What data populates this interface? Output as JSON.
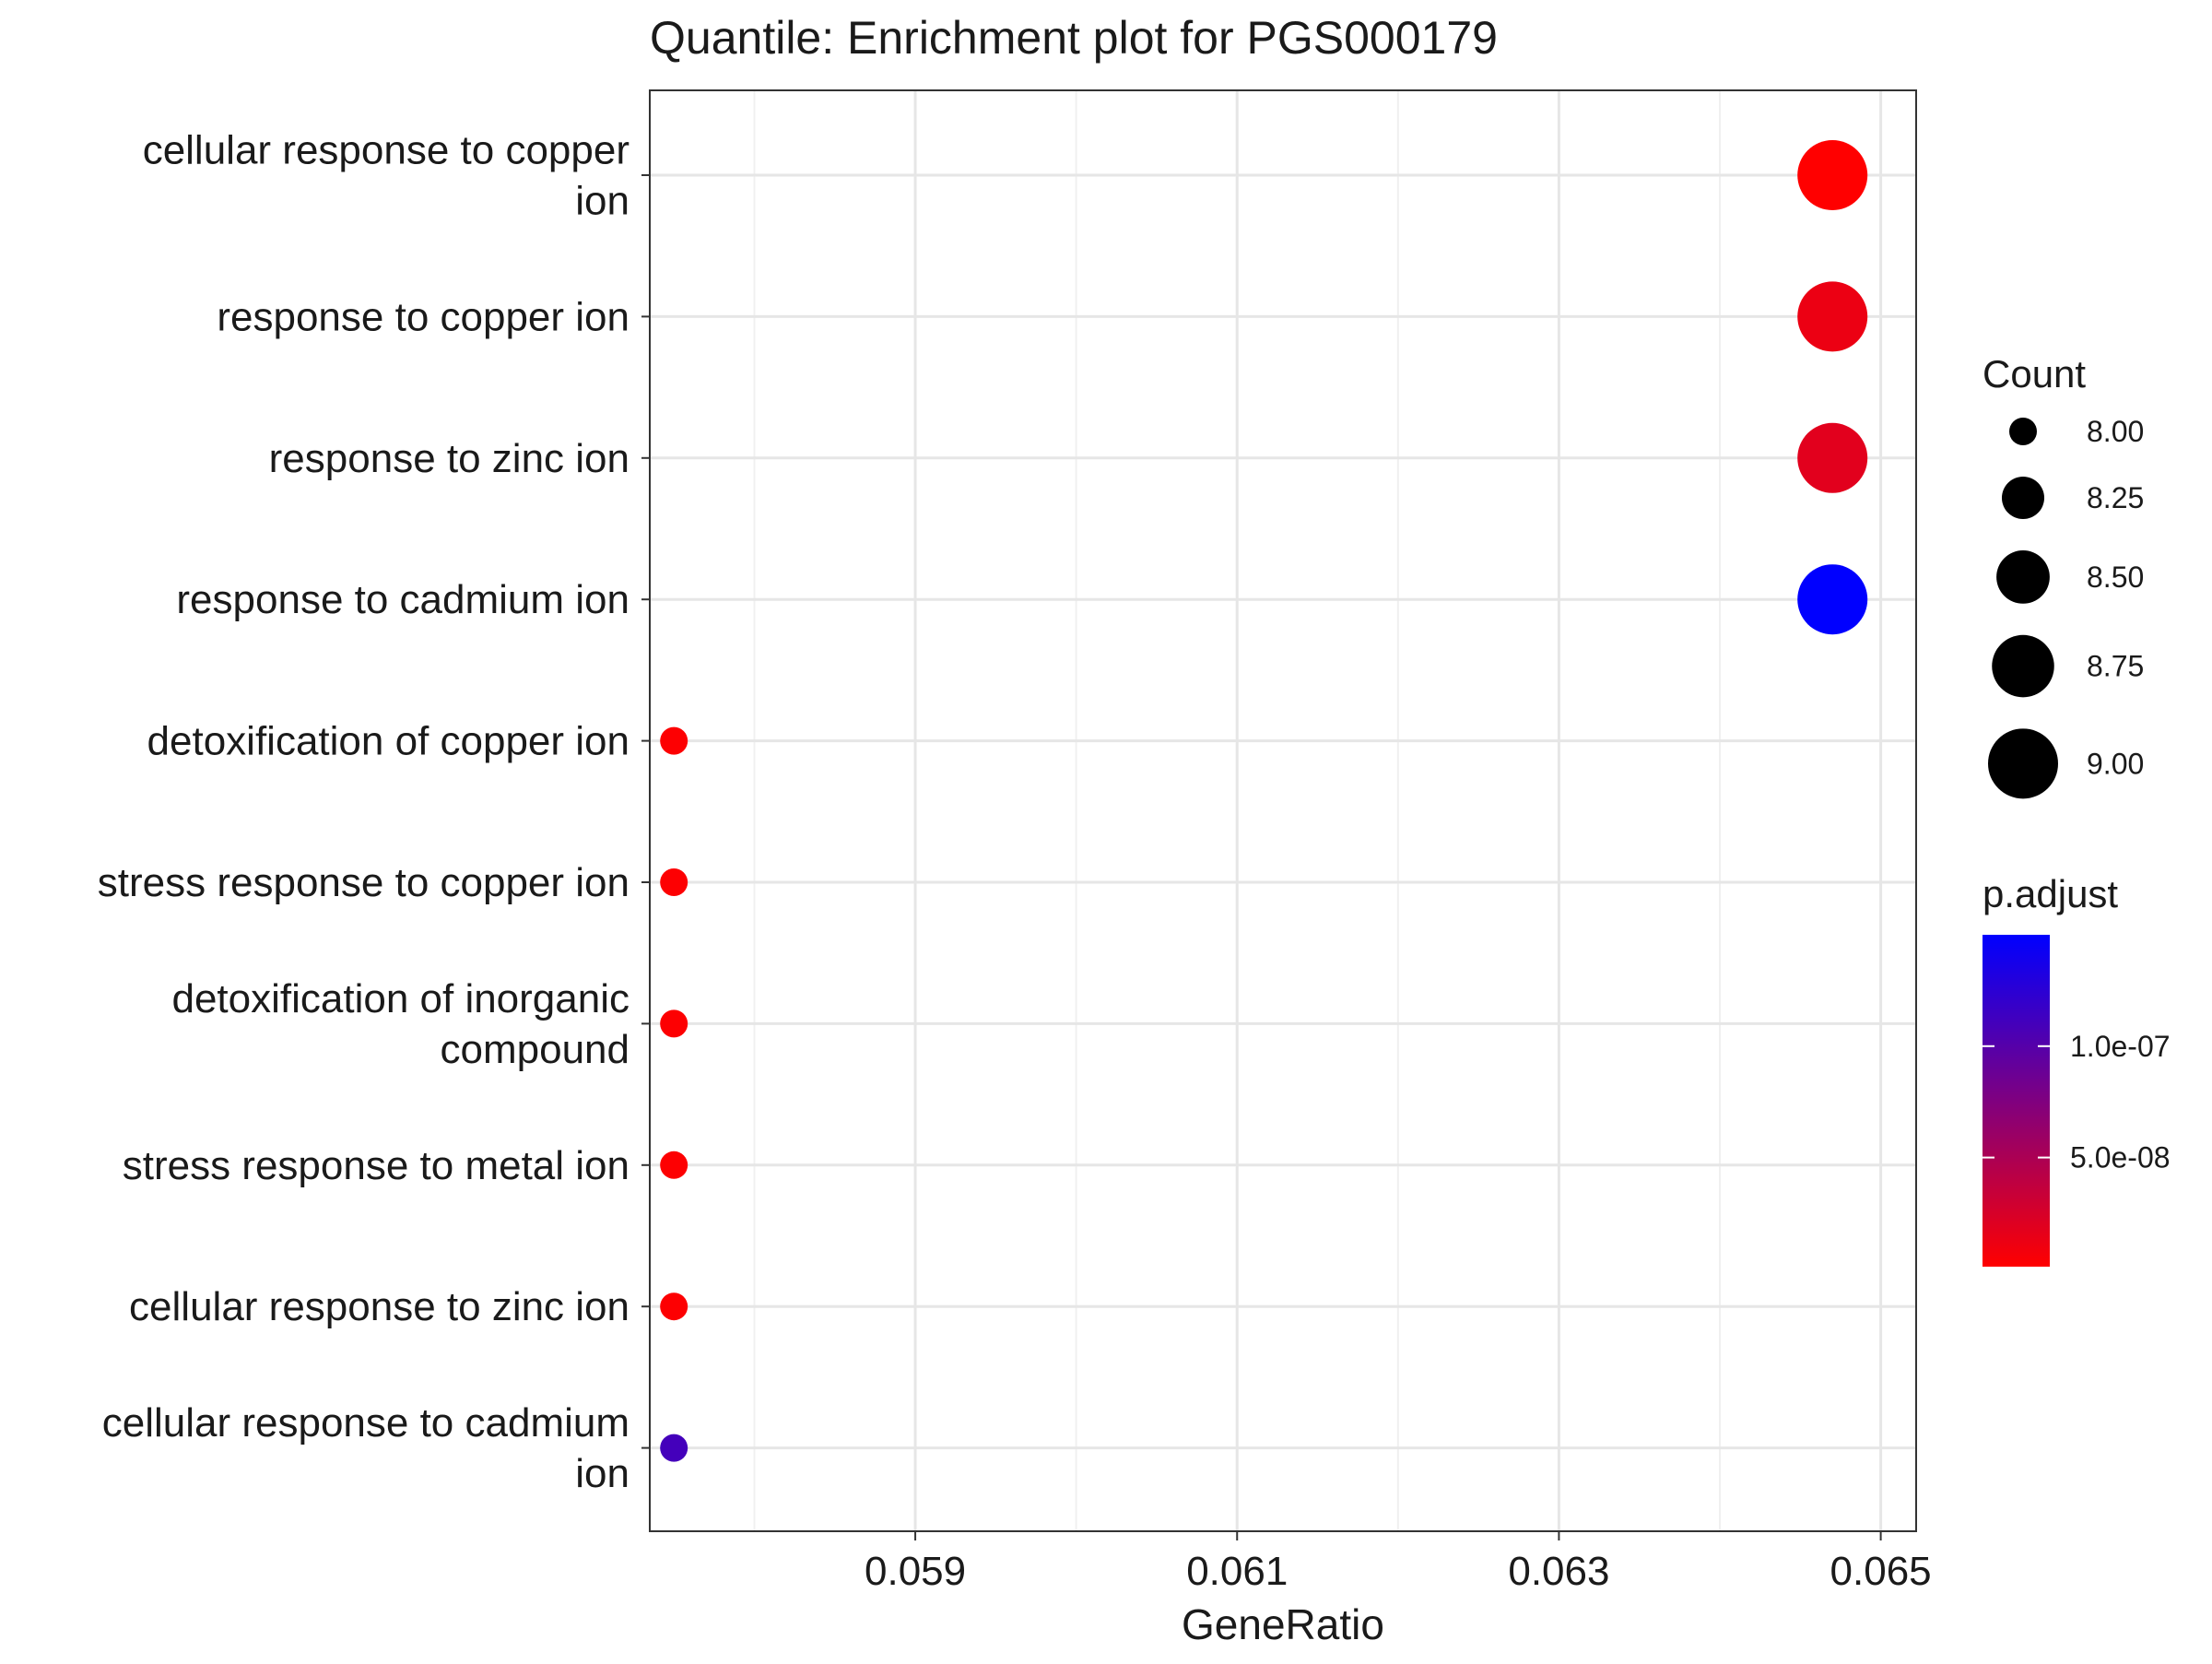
{
  "chart_data": {
    "type": "scatter",
    "title": "Quantile: Enrichment plot for PGS000179",
    "xlabel": "GeneRatio",
    "ylabel": "",
    "xlim": [
      0.05735,
      0.06522
    ],
    "x_ticks": [
      0.059,
      0.061,
      0.063,
      0.065
    ],
    "x_tick_labels": [
      "0.059",
      "0.061",
      "0.063",
      "0.065"
    ],
    "grid": true,
    "legend_position": "right",
    "categories": [
      "cellular response to copper ion",
      "response to copper ion",
      "response to zinc ion",
      "response to cadmium ion",
      "detoxification of copper ion",
      "stress response to copper ion",
      "detoxification of inorganic compound",
      "stress response to metal ion",
      "cellular response to zinc ion",
      "cellular response to cadmium ion"
    ],
    "category_label_lines": [
      [
        "cellular response to copper",
        "ion"
      ],
      [
        "response to copper ion"
      ],
      [
        "response to zinc ion"
      ],
      [
        "response to cadmium ion"
      ],
      [
        "detoxification of copper ion"
      ],
      [
        "stress response to copper ion"
      ],
      [
        "detoxification of inorganic",
        "compound"
      ],
      [
        "stress response to metal ion"
      ],
      [
        "cellular response to zinc ion"
      ],
      [
        "cellular response to cadmium",
        "ion"
      ]
    ],
    "x": [
      0.0647,
      0.0647,
      0.0647,
      0.0647,
      0.0575,
      0.0575,
      0.0575,
      0.0575,
      0.0575,
      0.0575
    ],
    "count": [
      9,
      9,
      9,
      9,
      8,
      8,
      8,
      8,
      8,
      8
    ],
    "p_adjust": [
      1e-09,
      1.2e-08,
      1.8e-08,
      1.5e-07,
      2e-09,
      2e-09,
      2e-09,
      2e-09,
      2e-09,
      1.1e-07
    ],
    "size_legend": {
      "title": "Count",
      "values": [
        8.0,
        8.25,
        8.5,
        8.75,
        9.0
      ],
      "labels": [
        "8.00",
        "8.25",
        "8.50",
        "8.75",
        "9.00"
      ]
    },
    "color_legend": {
      "title": "p.adjust",
      "range": [
        1e-09,
        1.5e-07
      ],
      "low_color": "#ff0000",
      "high_color": "#0000ff",
      "ticks": [
        5e-08,
        1e-07
      ],
      "tick_labels": [
        "5.0e-08",
        "1.0e-07"
      ]
    }
  }
}
